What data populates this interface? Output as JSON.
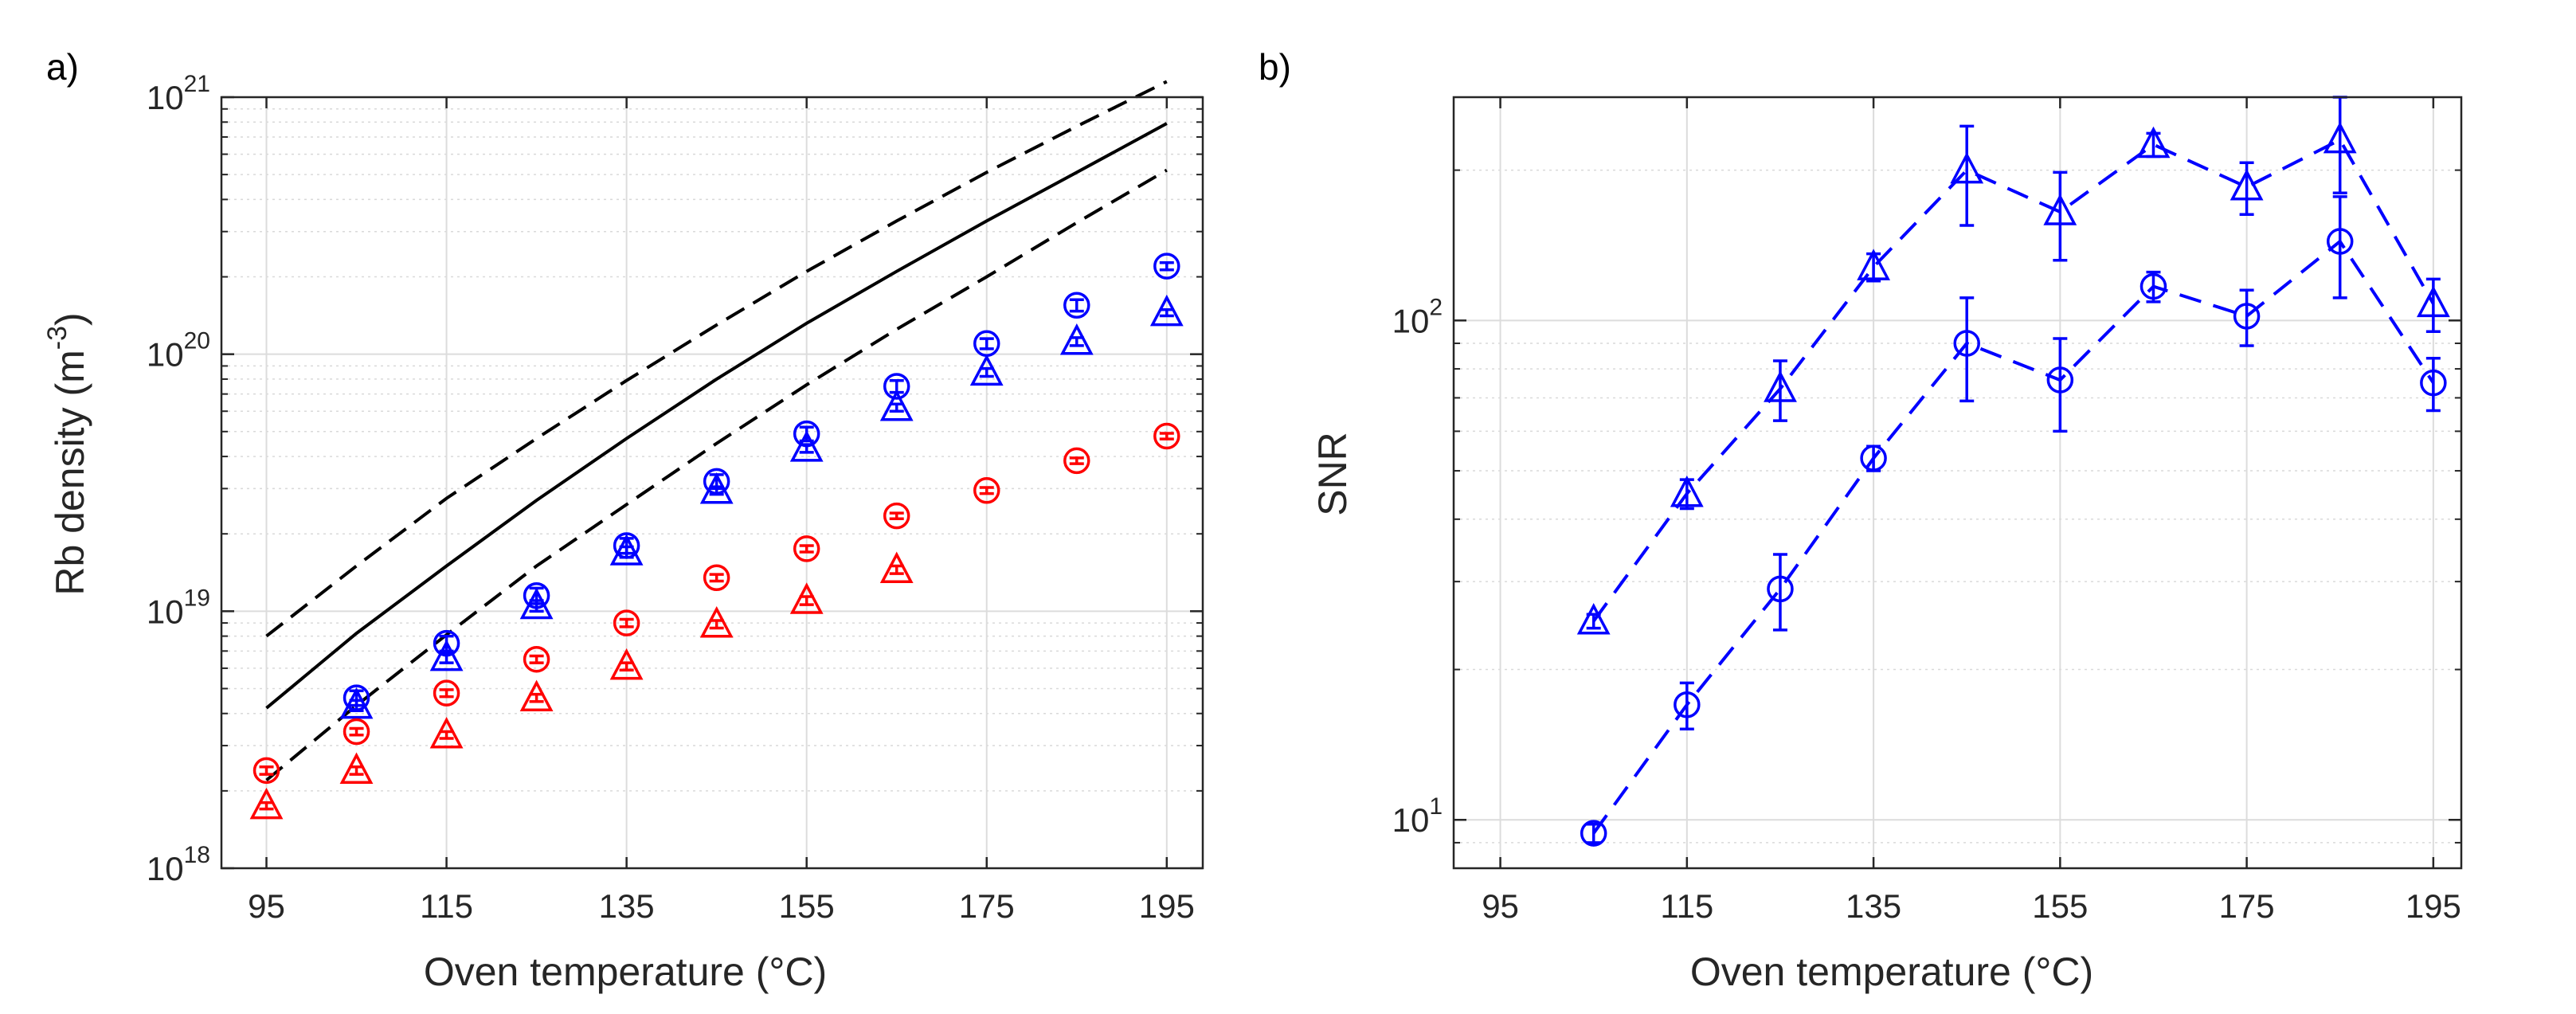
{
  "colors": {
    "blue": "#0000ff",
    "red": "#ff0000",
    "black": "#000000",
    "axis": "#262626"
  },
  "chart_data": [
    {
      "panel_label": "a)",
      "type": "scatter",
      "scale_y": "log",
      "xlabel": "Oven temperature (°C)",
      "ylabel": "Rb density (m",
      "ylabel_exp": "-3",
      "ylabel_close": ")",
      "xlim": [
        90,
        199
      ],
      "ylim": [
        1e+18,
        1e+21
      ],
      "xticks": [
        95,
        115,
        135,
        155,
        175,
        195
      ],
      "xtick_labels": [
        "95",
        "115",
        "135",
        "155",
        "175",
        "195"
      ],
      "yticks": [
        1e+18,
        1e+19,
        1e+20,
        1e+21
      ],
      "ytick_labels": [
        {
          "base": "10",
          "exp": "18"
        },
        {
          "base": "10",
          "exp": "19"
        },
        {
          "base": "10",
          "exp": "20"
        },
        {
          "base": "10",
          "exp": "21"
        }
      ],
      "grid": true,
      "lines": [
        {
          "name": "theory",
          "style": "solid",
          "color": "#000000",
          "x": [
            95,
            105,
            115,
            125,
            135,
            145,
            155,
            165,
            175,
            185,
            195
          ],
          "y": [
            4.2e+18,
            8.2e+18,
            1.5e+19,
            2.7e+19,
            4.7e+19,
            8e+19,
            1.32e+20,
            2.1e+20,
            3.3e+20,
            5.1e+20,
            7.9e+20
          ]
        },
        {
          "name": "theory-upper",
          "style": "dashed",
          "color": "#000000",
          "x": [
            95,
            105,
            115,
            125,
            135,
            145,
            155,
            165,
            175,
            185,
            195
          ],
          "y": [
            8e+18,
            1.5e+19,
            2.75e+19,
            4.7e+19,
            7.9e+19,
            1.3e+20,
            2.1e+20,
            3.3e+20,
            5.1e+20,
            7.7e+20,
            1.15e+21
          ]
        },
        {
          "name": "theory-lower",
          "style": "dashed",
          "color": "#000000",
          "x": [
            95,
            105,
            115,
            125,
            135,
            145,
            155,
            165,
            175,
            185,
            195
          ],
          "y": [
            2.2e+18,
            4.3e+18,
            8.1e+18,
            1.5e+19,
            2.6e+19,
            4.5e+19,
            7.6e+19,
            1.25e+20,
            2e+20,
            3.25e+20,
            5.2e+20
          ]
        }
      ],
      "series": [
        {
          "name": "blue-circle",
          "marker": "circle",
          "color": "#0000ff",
          "x": [
            105,
            115,
            125,
            135,
            145,
            155,
            165,
            175,
            185,
            195
          ],
          "y": [
            4.6e+18,
            7.5e+18,
            1.15e+19,
            1.8e+19,
            3.2e+19,
            4.9e+19,
            7.5e+19,
            1.1e+20,
            1.55e+20,
            2.2e+20
          ],
          "err": [
            3e+17,
            5e+17,
            8e+17,
            1.2e+18,
            2e+18,
            3e+18,
            4e+18,
            5e+18,
            8e+18,
            7e+18
          ]
        },
        {
          "name": "blue-triangle",
          "marker": "triangle",
          "color": "#0000ff",
          "x": [
            105,
            115,
            125,
            135,
            145,
            155,
            165,
            175,
            185,
            195
          ],
          "y": [
            4.3e+18,
            6.6e+18,
            1.05e+19,
            1.7e+19,
            2.95e+19,
            4.3e+19,
            6.2e+19,
            8.5e+19,
            1.12e+20,
            1.45e+20
          ],
          "err": [
            2e+17,
            3e+17,
            5e+17,
            8e+17,
            1e+18,
            1.5e+18,
            2e+18,
            3e+18,
            4e+18,
            4e+18
          ]
        },
        {
          "name": "red-circle",
          "marker": "circle",
          "color": "#ff0000",
          "x": [
            95,
            105,
            115,
            125,
            135,
            145,
            155,
            165,
            175,
            185,
            195
          ],
          "y": [
            2.4e+18,
            3.4e+18,
            4.8e+18,
            6.5e+18,
            9e+18,
            1.35e+19,
            1.75e+19,
            2.35e+19,
            2.95e+19,
            3.85e+19,
            4.8e+19
          ],
          "err": [
            8e+16,
            1e+17,
            1.5e+17,
            2e+17,
            3e+17,
            4e+17,
            5e+17,
            6e+17,
            8e+17,
            1e+18,
            1.2e+18
          ]
        },
        {
          "name": "red-triangle",
          "marker": "triangle",
          "color": "#ff0000",
          "x": [
            95,
            105,
            115,
            125,
            135,
            145,
            155,
            165
          ],
          "y": [
            1.75e+18,
            2.4e+18,
            3.3e+18,
            4.6e+18,
            6.1e+18,
            8.9e+18,
            1.1e+19,
            1.45e+19
          ],
          "err": [
            5e+16,
            8e+16,
            1e+17,
            1.5e+17,
            2e+17,
            3e+17,
            4e+17,
            5e+17
          ]
        }
      ]
    },
    {
      "panel_label": "b)",
      "type": "line",
      "scale_y": "log",
      "xlabel": "Oven temperature (°C)",
      "ylabel": "SNR",
      "xlim": [
        90,
        198
      ],
      "ylim": [
        8,
        280
      ],
      "xticks": [
        95,
        115,
        135,
        155,
        175,
        195
      ],
      "xtick_labels": [
        "95",
        "115",
        "135",
        "155",
        "175",
        "195"
      ],
      "yticks": [
        10,
        100
      ],
      "ytick_labels": [
        {
          "base": "10",
          "exp": "1"
        },
        {
          "base": "10",
          "exp": "2"
        }
      ],
      "grid": true,
      "series": [
        {
          "name": "triangle",
          "marker": "triangle",
          "color": "#0000ff",
          "linestyle": "dashed",
          "x": [
            105,
            115,
            125,
            135,
            145,
            155,
            165,
            175,
            185,
            195
          ],
          "y": [
            25,
            45,
            73,
            128,
            200,
            165,
            225,
            185,
            230,
            108
          ],
          "err_low": [
            0.8,
            3,
            10,
            8,
            45,
            33,
            12,
            22,
            50,
            13
          ],
          "err_high": [
            0.8,
            3,
            10,
            8,
            45,
            33,
            12,
            22,
            50,
            13
          ]
        },
        {
          "name": "circle",
          "marker": "circle",
          "color": "#0000ff",
          "linestyle": "dashed",
          "x": [
            105,
            115,
            125,
            135,
            145,
            155,
            165,
            175,
            185,
            195
          ],
          "y": [
            9.4,
            17,
            29,
            53,
            90,
            76,
            117,
            102,
            144,
            75
          ],
          "err_low": [
            0.4,
            1.8,
            5,
            3,
            21,
            16,
            8,
            13,
            33,
            9
          ],
          "err_high": [
            0.4,
            1.8,
            5,
            3,
            21,
            16,
            8,
            13,
            33,
            9
          ]
        }
      ]
    }
  ]
}
